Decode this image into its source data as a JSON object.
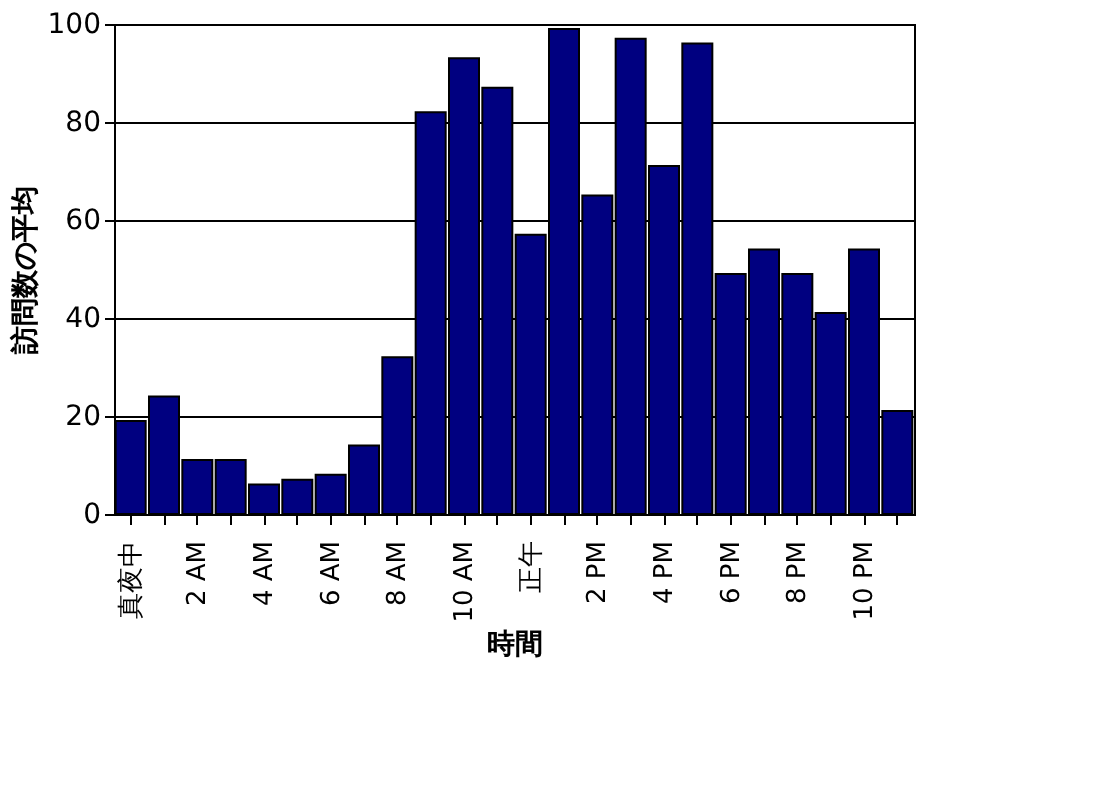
{
  "chart_data": {
    "type": "bar",
    "xlabel": "時間",
    "ylabel": "訪問数の平均",
    "categories": [
      "真夜中",
      null,
      "2 AM",
      null,
      "4 AM",
      null,
      "6 AM",
      null,
      "8 AM",
      null,
      "10 AM",
      null,
      "正午",
      null,
      "2 PM",
      null,
      "4 PM",
      null,
      "6 PM",
      null,
      "8 PM",
      null,
      "10 PM",
      null
    ],
    "values": [
      19,
      24,
      11,
      11,
      6,
      7,
      8,
      14,
      32,
      82,
      93,
      87,
      57,
      99,
      65,
      97,
      71,
      96,
      49,
      54,
      49,
      41,
      54,
      21
    ],
    "color": "#000080",
    "ylim": [
      0,
      100
    ],
    "yticks": [
      0,
      20,
      40,
      60,
      80,
      100
    ],
    "grid": "y"
  }
}
